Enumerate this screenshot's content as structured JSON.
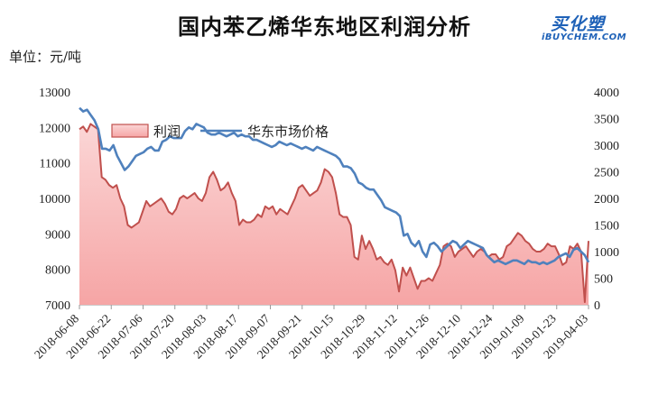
{
  "title": "国内苯乙烯华东地区利润分析",
  "unit": "单位：元/吨",
  "logo": {
    "cn": "买化塑",
    "en": "iBUYCHEM.COM"
  },
  "colors": {
    "area_fill": "#f6a5a5",
    "area_line": "#c0504d",
    "price_line": "#4f81bd"
  },
  "chart_data": {
    "type": "area",
    "x_ticks": [
      "2018-06-08",
      "2018-06-22",
      "2018-07-06",
      "2018-07-20",
      "2018-08-03",
      "2018-08-17",
      "2018-09-07",
      "2018-09-21",
      "2018-10-15",
      "2018-10-29",
      "2018-11-12",
      "2018-11-26",
      "2018-12-10",
      "2018-12-24",
      "2019-01-09",
      "2019-01-23",
      "2019-04-03"
    ],
    "y_left": {
      "min": 7000,
      "max": 13000,
      "ticks": [
        7000,
        8000,
        9000,
        10000,
        11000,
        12000,
        13000
      ]
    },
    "y_right": {
      "min": 0,
      "max": 4000,
      "ticks": [
        0,
        500,
        1000,
        1500,
        2000,
        2500,
        3000,
        3500,
        4000
      ]
    },
    "legend": {
      "placement": "top-center",
      "entries": [
        "利润",
        "华东市场价格"
      ]
    },
    "series": [
      {
        "name": "利润",
        "axis": "right",
        "type": "area",
        "values": [
          3300,
          3350,
          3250,
          3400,
          3350,
          3300,
          2400,
          2350,
          2250,
          2200,
          2250,
          2000,
          1850,
          1500,
          1450,
          1500,
          1550,
          1750,
          1950,
          1850,
          1900,
          1950,
          2000,
          1900,
          1750,
          1700,
          1800,
          2000,
          2050,
          2000,
          2050,
          2100,
          2000,
          1950,
          2100,
          2400,
          2500,
          2350,
          2150,
          2200,
          2300,
          2100,
          1950,
          1500,
          1600,
          1550,
          1550,
          1600,
          1700,
          1650,
          1850,
          1800,
          1850,
          1700,
          1800,
          1750,
          1700,
          1850,
          2000,
          2200,
          2250,
          2150,
          2050,
          2100,
          2150,
          2300,
          2550,
          2500,
          2400,
          2100,
          1700,
          1650,
          1650,
          1500,
          900,
          850,
          1300,
          1050,
          1200,
          1050,
          850,
          900,
          800,
          750,
          850,
          650,
          250,
          700,
          550,
          700,
          500,
          300,
          450,
          450,
          500,
          450,
          600,
          750,
          1100,
          1150,
          1100,
          900,
          1000,
          1050,
          1100,
          1000,
          900,
          1000,
          1050,
          1000,
          900,
          950,
          950,
          850,
          900,
          1100,
          1150,
          1250,
          1350,
          1300,
          1200,
          1150,
          1050,
          1000,
          1000,
          1050,
          1150,
          1100,
          1100,
          950,
          750,
          800,
          1100,
          1050,
          1150,
          1000,
          50,
          1200
        ]
      },
      {
        "name": "华东市场价格",
        "axis": "left",
        "type": "line",
        "values": [
          12550,
          12450,
          12500,
          12350,
          12200,
          11950,
          11400,
          11400,
          11350,
          11500,
          11200,
          11000,
          10800,
          10900,
          11050,
          11200,
          11250,
          11300,
          11400,
          11450,
          11350,
          11350,
          11600,
          11650,
          11750,
          11700,
          11700,
          11700,
          11900,
          12000,
          11950,
          12100,
          12050,
          12000,
          11850,
          11800,
          11800,
          11850,
          11800,
          11750,
          11800,
          11850,
          11750,
          11800,
          11750,
          11750,
          11650,
          11650,
          11600,
          11550,
          11500,
          11450,
          11500,
          11600,
          11550,
          11500,
          11550,
          11500,
          11450,
          11400,
          11450,
          11400,
          11350,
          11450,
          11400,
          11350,
          11300,
          11250,
          11200,
          11100,
          10900,
          10900,
          10850,
          10700,
          10450,
          10400,
          10300,
          10250,
          10250,
          10100,
          9950,
          9750,
          9700,
          9650,
          9600,
          9500,
          8950,
          9000,
          8750,
          8650,
          8800,
          8500,
          8350,
          8700,
          8750,
          8650,
          8500,
          8600,
          8700,
          8800,
          8750,
          8600,
          8700,
          8800,
          8750,
          8700,
          8650,
          8600,
          8400,
          8300,
          8200,
          8250,
          8200,
          8150,
          8200,
          8250,
          8250,
          8200,
          8150,
          8250,
          8200,
          8200,
          8150,
          8200,
          8150,
          8200,
          8250,
          8350,
          8400,
          8450,
          8350,
          8550,
          8600,
          8500,
          8400,
          8200
        ]
      }
    ]
  }
}
